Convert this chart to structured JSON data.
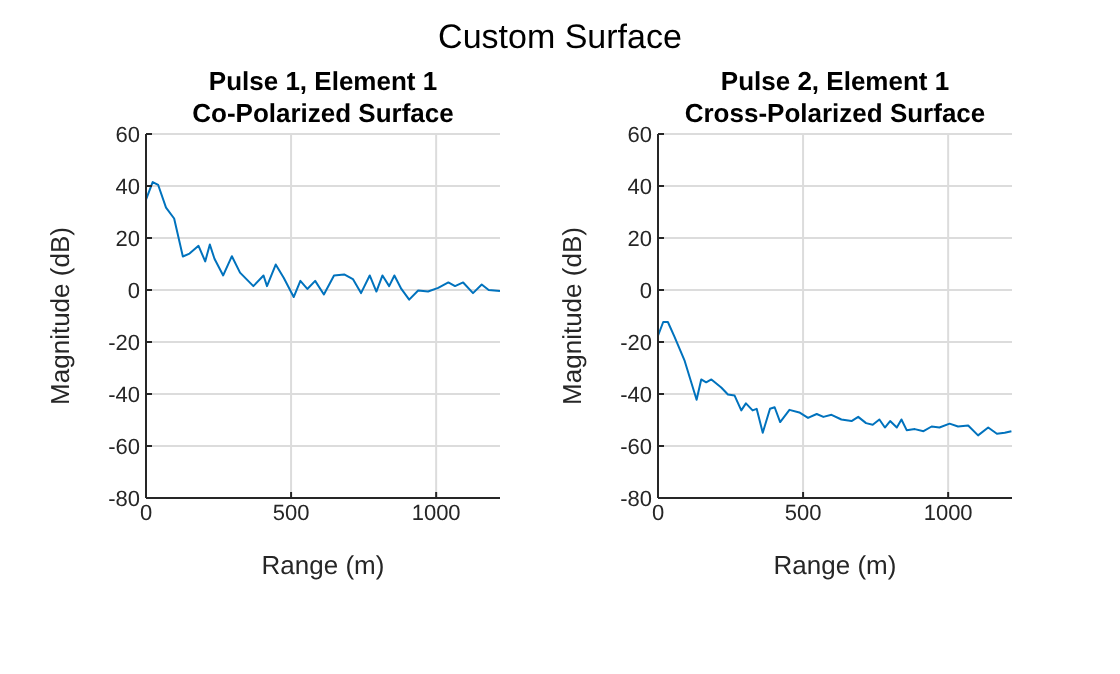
{
  "chart_data": [
    {
      "type": "line",
      "title": "Pulse 1, Element 1\nCo-Polarized Surface",
      "xlabel": "Range (m)",
      "ylabel": "Magnitude (dB)",
      "annotations": [
        "Custom Surface"
      ],
      "xlim": [
        0,
        1220
      ],
      "xticks": [
        0,
        500,
        1000
      ],
      "ylim": [
        -80,
        60
      ],
      "yticks": [
        -80,
        -60,
        -40,
        -20,
        0,
        20,
        40,
        60
      ],
      "grid": true,
      "series": [
        {
          "color": "#0072bd",
          "x": [
            0,
            23,
            42,
            69,
            97,
            127,
            150,
            181,
            204,
            220,
            236,
            266,
            296,
            324,
            370,
            405,
            417,
            447,
            475,
            509,
            532,
            556,
            583,
            613,
            648,
            683,
            713,
            741,
            771,
            794,
            815,
            838,
            856,
            880,
            907,
            938,
            972,
            1007,
            1042,
            1065,
            1093,
            1127,
            1157,
            1181,
            1220
          ],
          "values": [
            34.8,
            41.5,
            40.4,
            31.7,
            27.5,
            12.9,
            14,
            17,
            11,
            17.5,
            12,
            5.6,
            13,
            6.7,
            1.5,
            5.6,
            1.5,
            9.8,
            4.6,
            -2.7,
            3.5,
            0.4,
            3.5,
            -1.7,
            5.6,
            6,
            4.2,
            -1.2,
            5.6,
            -0.6,
            5.6,
            1.5,
            5.6,
            0.4,
            -3.7,
            -0.2,
            -0.6,
            0.8,
            2.9,
            1.5,
            2.9,
            -1.2,
            2.1,
            0,
            -0.4
          ]
        }
      ]
    },
    {
      "type": "line",
      "title": "Pulse 2, Element 1\nCross-Polarized Surface",
      "xlabel": "Range (m)",
      "ylabel": "Magnitude (dB)",
      "xlim": [
        0,
        1220
      ],
      "xticks": [
        0,
        500,
        1000
      ],
      "ylim": [
        -80,
        60
      ],
      "yticks": [
        -80,
        -60,
        -40,
        -20,
        0,
        20,
        40,
        60
      ],
      "grid": true,
      "series": [
        {
          "color": "#0072bd",
          "x": [
            0,
            18,
            34,
            57,
            92,
            133,
            149,
            166,
            184,
            218,
            241,
            264,
            287,
            303,
            326,
            340,
            361,
            386,
            402,
            421,
            453,
            487,
            517,
            547,
            570,
            598,
            632,
            667,
            690,
            717,
            740,
            763,
            782,
            800,
            823,
            839,
            857,
            885,
            915,
            943,
            970,
            1005,
            1034,
            1069,
            1103,
            1138,
            1168,
            1195,
            1218
          ],
          "values": [
            -17.6,
            -12.3,
            -12.3,
            -18,
            -27.3,
            -42.2,
            -34.4,
            -35.5,
            -34.4,
            -37.5,
            -40.2,
            -40.6,
            -46.3,
            -43.6,
            -46.3,
            -45.7,
            -54.9,
            -45.7,
            -45.1,
            -50.8,
            -46.1,
            -47.1,
            -49.2,
            -47.7,
            -48.8,
            -48,
            -49.8,
            -50.4,
            -48.8,
            -51.2,
            -51.8,
            -49.8,
            -52.9,
            -50.4,
            -52.9,
            -49.8,
            -53.9,
            -53.5,
            -54.3,
            -52.5,
            -52.9,
            -51.4,
            -52.5,
            -52.1,
            -55.9,
            -52.9,
            -55.3,
            -54.9,
            -54.3
          ]
        }
      ]
    }
  ]
}
